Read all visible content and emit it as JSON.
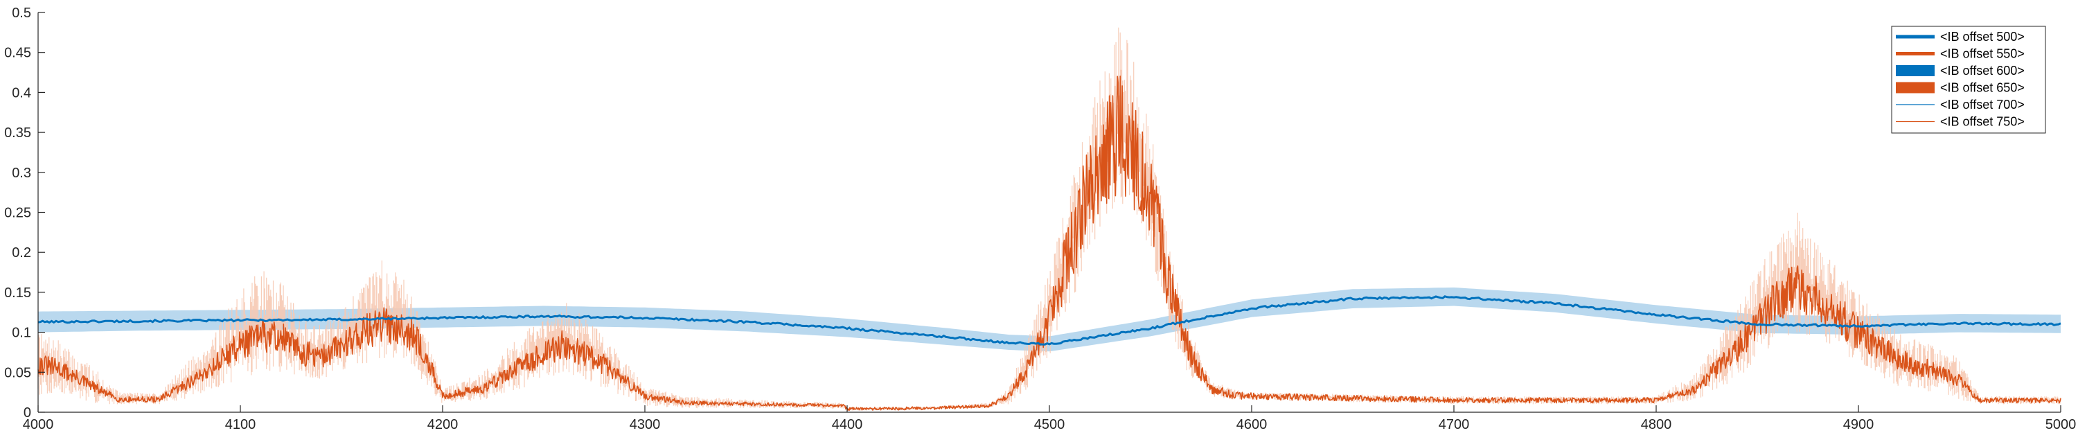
{
  "chart_data": {
    "type": "line",
    "title": "",
    "xlabel": "",
    "ylabel": "",
    "xlim": [
      4000,
      5000
    ],
    "ylim": [
      0,
      0.5
    ],
    "xticks": [
      4000,
      4100,
      4200,
      4300,
      4400,
      4500,
      4600,
      4700,
      4800,
      4900,
      5000
    ],
    "yticks": [
      0,
      0.05,
      0.1,
      0.15,
      0.2,
      0.25,
      0.3,
      0.35,
      0.4,
      0.45,
      0.5
    ],
    "xtick_labels": [
      "4000",
      "4100",
      "4200",
      "4300",
      "4400",
      "4500",
      "4600",
      "4700",
      "4800",
      "4900",
      "5000"
    ],
    "ytick_labels": [
      "0",
      "0.05",
      "0.1",
      "0.15",
      "0.2",
      "0.25",
      "0.3",
      "0.35",
      "0.4",
      "0.45",
      "0.5"
    ],
    "grid": false,
    "legend_position": "top-right",
    "colors": {
      "blue": "#0072BD",
      "orange": "#D95319",
      "blue_band": "#b9d8ee",
      "orange_band": "#f6c9b3"
    },
    "legend": [
      {
        "label": "<IB offset 500>",
        "color": "#0072BD",
        "style": "thick-line"
      },
      {
        "label": "<IB offset 550>",
        "color": "#D95319",
        "style": "thick-line"
      },
      {
        "label": "<IB offset 600>",
        "color": "#0072BD",
        "style": "patch"
      },
      {
        "label": "<IB offset 650>",
        "color": "#D95319",
        "style": "patch"
      },
      {
        "label": "<IB offset 700>",
        "color": "#0072BD",
        "style": "thin-line"
      },
      {
        "label": "<IB offset 750>",
        "color": "#D95319",
        "style": "thin-line"
      }
    ],
    "series": [
      {
        "color": "#0072BD",
        "kind": "mean",
        "x": [
          4000,
          4050,
          4100,
          4150,
          4200,
          4250,
          4300,
          4350,
          4400,
          4450,
          4480,
          4500,
          4550,
          4600,
          4650,
          4700,
          4750,
          4800,
          4850,
          4900,
          4950,
          5000
        ],
        "y": [
          0.113,
          0.114,
          0.115,
          0.116,
          0.118,
          0.12,
          0.118,
          0.113,
          0.105,
          0.094,
          0.087,
          0.085,
          0.105,
          0.13,
          0.142,
          0.144,
          0.136,
          0.122,
          0.11,
          0.108,
          0.111,
          0.11
        ]
      },
      {
        "color": "#0072BD",
        "kind": "band",
        "x": [
          4000,
          4050,
          4100,
          4150,
          4200,
          4250,
          4300,
          4350,
          4400,
          4450,
          4480,
          4500,
          4550,
          4600,
          4650,
          4700,
          4750,
          4800,
          4850,
          4900,
          4950,
          5000
        ],
        "lower": [
          0.1,
          0.102,
          0.103,
          0.104,
          0.106,
          0.108,
          0.106,
          0.101,
          0.094,
          0.084,
          0.078,
          0.076,
          0.095,
          0.119,
          0.13,
          0.133,
          0.125,
          0.111,
          0.099,
          0.097,
          0.1,
          0.099
        ],
        "upper": [
          0.126,
          0.127,
          0.128,
          0.129,
          0.131,
          0.133,
          0.131,
          0.126,
          0.117,
          0.105,
          0.097,
          0.095,
          0.116,
          0.141,
          0.154,
          0.156,
          0.148,
          0.134,
          0.122,
          0.12,
          0.123,
          0.122
        ]
      },
      {
        "color": "#D95319",
        "kind": "mean",
        "x": [
          4000,
          4010,
          4020,
          4030,
          4040,
          4060,
          4080,
          4100,
          4110,
          4120,
          4130,
          4140,
          4160,
          4170,
          4180,
          4190,
          4200,
          4220,
          4240,
          4260,
          4280,
          4300,
          4320,
          4360,
          4398,
          4400,
          4440,
          4470,
          4480,
          4490,
          4500,
          4510,
          4520,
          4530,
          4535,
          4540,
          4550,
          4560,
          4570,
          4580,
          4590,
          4600,
          4700,
          4800,
          4820,
          4840,
          4860,
          4870,
          4880,
          4900,
          4920,
          4940,
          4950,
          4960,
          5000
        ],
        "y": [
          0.06,
          0.055,
          0.042,
          0.028,
          0.016,
          0.016,
          0.045,
          0.085,
          0.095,
          0.095,
          0.075,
          0.068,
          0.1,
          0.108,
          0.11,
          0.08,
          0.02,
          0.03,
          0.06,
          0.085,
          0.06,
          0.02,
          0.012,
          0.01,
          0.008,
          0.004,
          0.005,
          0.008,
          0.02,
          0.06,
          0.12,
          0.2,
          0.28,
          0.33,
          0.35,
          0.33,
          0.27,
          0.15,
          0.07,
          0.03,
          0.022,
          0.02,
          0.015,
          0.015,
          0.03,
          0.08,
          0.14,
          0.155,
          0.14,
          0.1,
          0.065,
          0.05,
          0.04,
          0.015,
          0.015
        ]
      },
      {
        "color": "#D95319",
        "kind": "band",
        "x": [
          4000,
          4010,
          4020,
          4030,
          4040,
          4060,
          4080,
          4100,
          4110,
          4120,
          4130,
          4140,
          4160,
          4170,
          4180,
          4190,
          4200,
          4220,
          4240,
          4260,
          4280,
          4300,
          4320,
          4360,
          4398,
          4400,
          4440,
          4470,
          4480,
          4490,
          4500,
          4510,
          4520,
          4530,
          4535,
          4540,
          4550,
          4560,
          4570,
          4580,
          4590,
          4600,
          4700,
          4800,
          4820,
          4840,
          4860,
          4870,
          4880,
          4900,
          4920,
          4940,
          4950,
          4960,
          5000
        ],
        "lower": [
          0.02,
          0.02,
          0.015,
          0.01,
          0.01,
          0.01,
          0.02,
          0.04,
          0.05,
          0.05,
          0.045,
          0.04,
          0.06,
          0.065,
          0.07,
          0.04,
          0.01,
          0.015,
          0.03,
          0.05,
          0.03,
          0.008,
          0.005,
          0.005,
          0.004,
          0.002,
          0.003,
          0.005,
          0.01,
          0.03,
          0.07,
          0.13,
          0.2,
          0.25,
          0.26,
          0.25,
          0.2,
          0.1,
          0.04,
          0.02,
          0.015,
          0.015,
          0.01,
          0.01,
          0.015,
          0.04,
          0.09,
          0.1,
          0.09,
          0.06,
          0.03,
          0.02,
          0.015,
          0.01,
          0.01
        ],
        "upper": [
          0.1,
          0.09,
          0.07,
          0.05,
          0.025,
          0.025,
          0.08,
          0.15,
          0.18,
          0.17,
          0.12,
          0.11,
          0.16,
          0.19,
          0.17,
          0.12,
          0.03,
          0.05,
          0.1,
          0.14,
          0.1,
          0.035,
          0.02,
          0.015,
          0.012,
          0.006,
          0.007,
          0.012,
          0.03,
          0.1,
          0.18,
          0.28,
          0.38,
          0.45,
          0.49,
          0.46,
          0.36,
          0.2,
          0.1,
          0.04,
          0.03,
          0.025,
          0.02,
          0.02,
          0.05,
          0.13,
          0.22,
          0.25,
          0.21,
          0.15,
          0.1,
          0.08,
          0.07,
          0.02,
          0.02
        ]
      }
    ]
  }
}
